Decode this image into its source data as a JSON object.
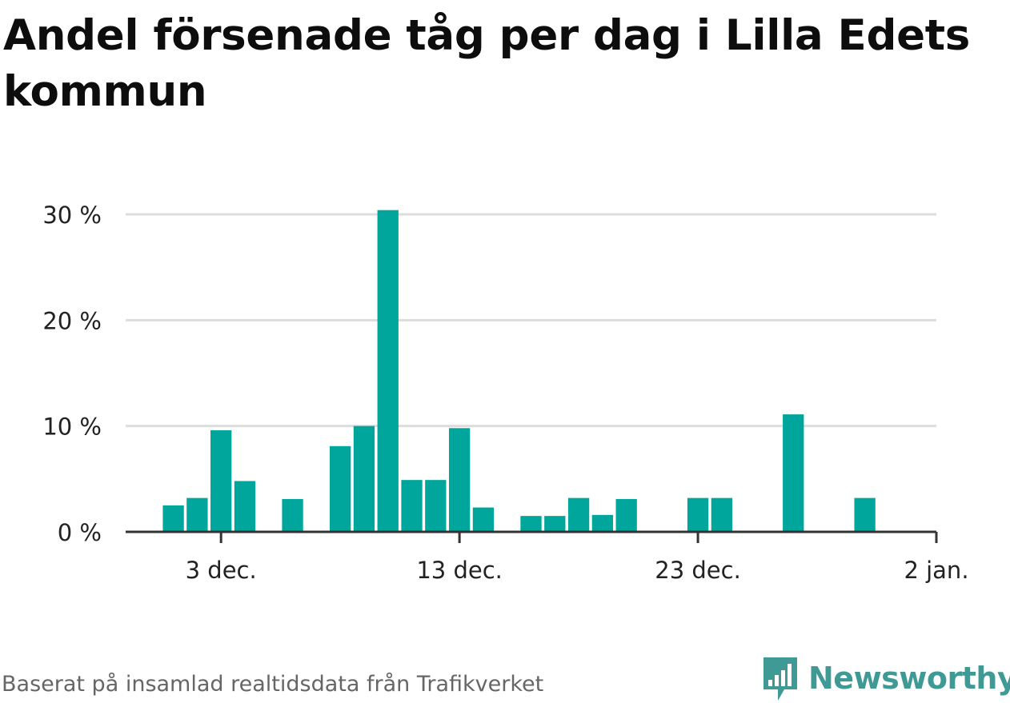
{
  "title": "Andel försenade tåg per dag i Lilla Edets kommun",
  "source": "Baserat på insamlad realtidsdata från Trafikverket",
  "logo": {
    "text": "Newsworthy",
    "icon": "newsworthy-chart-bubble-icon",
    "color": "#3f9a95"
  },
  "colors": {
    "bar": "#00a59b",
    "grid": "#dddddd",
    "axis": "#333333"
  },
  "chart_data": {
    "type": "bar",
    "title": "Andel försenade tåg per dag i Lilla Edets kommun",
    "xlabel": "",
    "ylabel": "",
    "x_domain": [
      "2018-11-29",
      "2019-01-02"
    ],
    "ylim": [
      0,
      30
    ],
    "y_ticks": [
      {
        "value": 0,
        "label": "0 %"
      },
      {
        "value": 10,
        "label": "10 %"
      },
      {
        "value": 20,
        "label": "20 %"
      },
      {
        "value": 30,
        "label": "30 %"
      }
    ],
    "x_ticks": [
      {
        "date": "2018-12-03",
        "label": "3 dec."
      },
      {
        "date": "2018-12-13",
        "label": "13 dec."
      },
      {
        "date": "2018-12-23",
        "label": "23 dec."
      },
      {
        "date": "2019-01-02",
        "label": "2 jan."
      }
    ],
    "grid": true,
    "legend": "none",
    "bars": [
      {
        "date": "2018-12-01",
        "value": 2.5
      },
      {
        "date": "2018-12-02",
        "value": 3.2
      },
      {
        "date": "2018-12-03",
        "value": 9.6
      },
      {
        "date": "2018-12-04",
        "value": 4.8
      },
      {
        "date": "2018-12-05",
        "value": 0
      },
      {
        "date": "2018-12-06",
        "value": 3.1
      },
      {
        "date": "2018-12-07",
        "value": 0
      },
      {
        "date": "2018-12-08",
        "value": 8.1
      },
      {
        "date": "2018-12-09",
        "value": 10.0
      },
      {
        "date": "2018-12-10",
        "value": 30.4
      },
      {
        "date": "2018-12-11",
        "value": 4.9
      },
      {
        "date": "2018-12-12",
        "value": 4.9
      },
      {
        "date": "2018-12-13",
        "value": 9.8
      },
      {
        "date": "2018-12-14",
        "value": 2.3
      },
      {
        "date": "2018-12-15",
        "value": 0
      },
      {
        "date": "2018-12-16",
        "value": 1.5
      },
      {
        "date": "2018-12-17",
        "value": 1.5
      },
      {
        "date": "2018-12-18",
        "value": 3.2
      },
      {
        "date": "2018-12-19",
        "value": 1.6
      },
      {
        "date": "2018-12-20",
        "value": 3.1
      },
      {
        "date": "2018-12-21",
        "value": 0
      },
      {
        "date": "2018-12-22",
        "value": 0
      },
      {
        "date": "2018-12-23",
        "value": 3.2
      },
      {
        "date": "2018-12-24",
        "value": 3.2
      },
      {
        "date": "2018-12-25",
        "value": 0
      },
      {
        "date": "2018-12-26",
        "value": 0
      },
      {
        "date": "2018-12-27",
        "value": 11.1
      },
      {
        "date": "2018-12-28",
        "value": 0
      },
      {
        "date": "2018-12-29",
        "value": 0
      },
      {
        "date": "2018-12-30",
        "value": 3.2
      }
    ]
  }
}
